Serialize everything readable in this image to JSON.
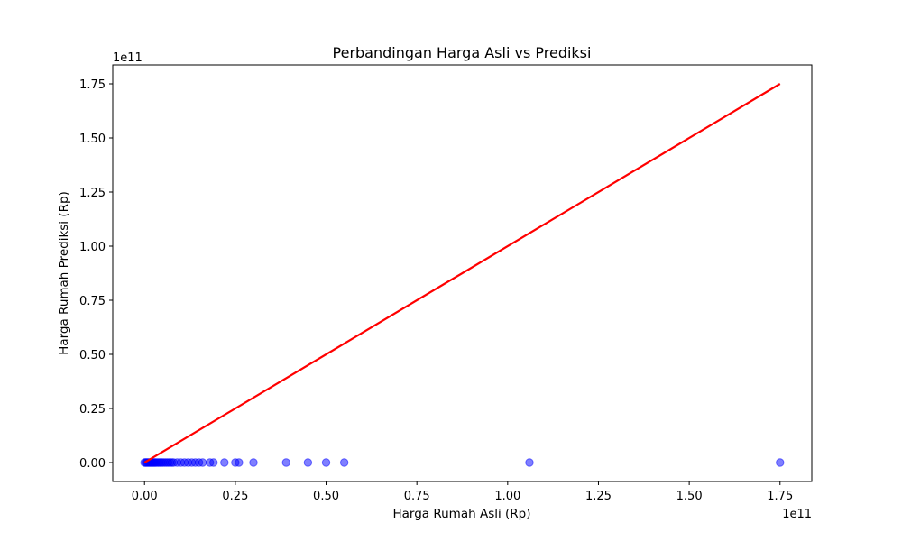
{
  "chart_data": {
    "type": "scatter",
    "title": "Perbandingan Harga Asli vs Prediksi",
    "xlabel": "Harga Rumah Asli (Rp)",
    "ylabel": "Harga Rumah Prediksi (Rp)",
    "x_offset_label": "1e11",
    "y_offset_label": "1e11",
    "xlim": [
      -0.0875,
      1.8375
    ],
    "ylim": [
      -0.0875,
      1.8375
    ],
    "x_ticks": [
      0.0,
      0.25,
      0.5,
      0.75,
      1.0,
      1.25,
      1.5,
      1.75
    ],
    "x_tick_labels": [
      "0.00",
      "0.25",
      "0.50",
      "0.75",
      "1.00",
      "1.25",
      "1.50",
      "1.75"
    ],
    "y_ticks": [
      0.0,
      0.25,
      0.5,
      0.75,
      1.0,
      1.25,
      1.5,
      1.75
    ],
    "y_tick_labels": [
      "0.00",
      "0.25",
      "0.50",
      "0.75",
      "1.00",
      "1.25",
      "1.50",
      "1.75"
    ],
    "grid": false,
    "colors": {
      "points": "#0000ff",
      "reference_line": "#ff0000"
    },
    "series": [
      {
        "values_unit": "1e11 Rp",
        "x": [
          0.0,
          0.003,
          0.006,
          0.009,
          0.012,
          0.015,
          0.018,
          0.021,
          0.024,
          0.027,
          0.03,
          0.034,
          0.038,
          0.042,
          0.046,
          0.05,
          0.055,
          0.06,
          0.065,
          0.07,
          0.075,
          0.08,
          0.09,
          0.1,
          0.11,
          0.12,
          0.13,
          0.14,
          0.15,
          0.16,
          0.18,
          0.19,
          0.22,
          0.25,
          0.26,
          0.3,
          0.39,
          0.45,
          0.5,
          0.55,
          1.06,
          1.75
        ],
        "y": [
          0,
          0,
          0,
          0,
          0,
          0,
          0,
          0,
          0,
          0,
          0,
          0,
          0,
          0,
          0,
          0,
          0,
          0,
          0,
          0,
          0,
          0,
          0,
          0,
          0,
          0,
          0,
          0,
          0,
          0,
          0,
          0,
          0,
          0,
          0,
          0,
          0,
          0,
          0,
          0,
          0,
          0
        ]
      }
    ],
    "reference_line": {
      "x": [
        0.0,
        1.75
      ],
      "y": [
        0.0,
        1.75
      ]
    }
  }
}
